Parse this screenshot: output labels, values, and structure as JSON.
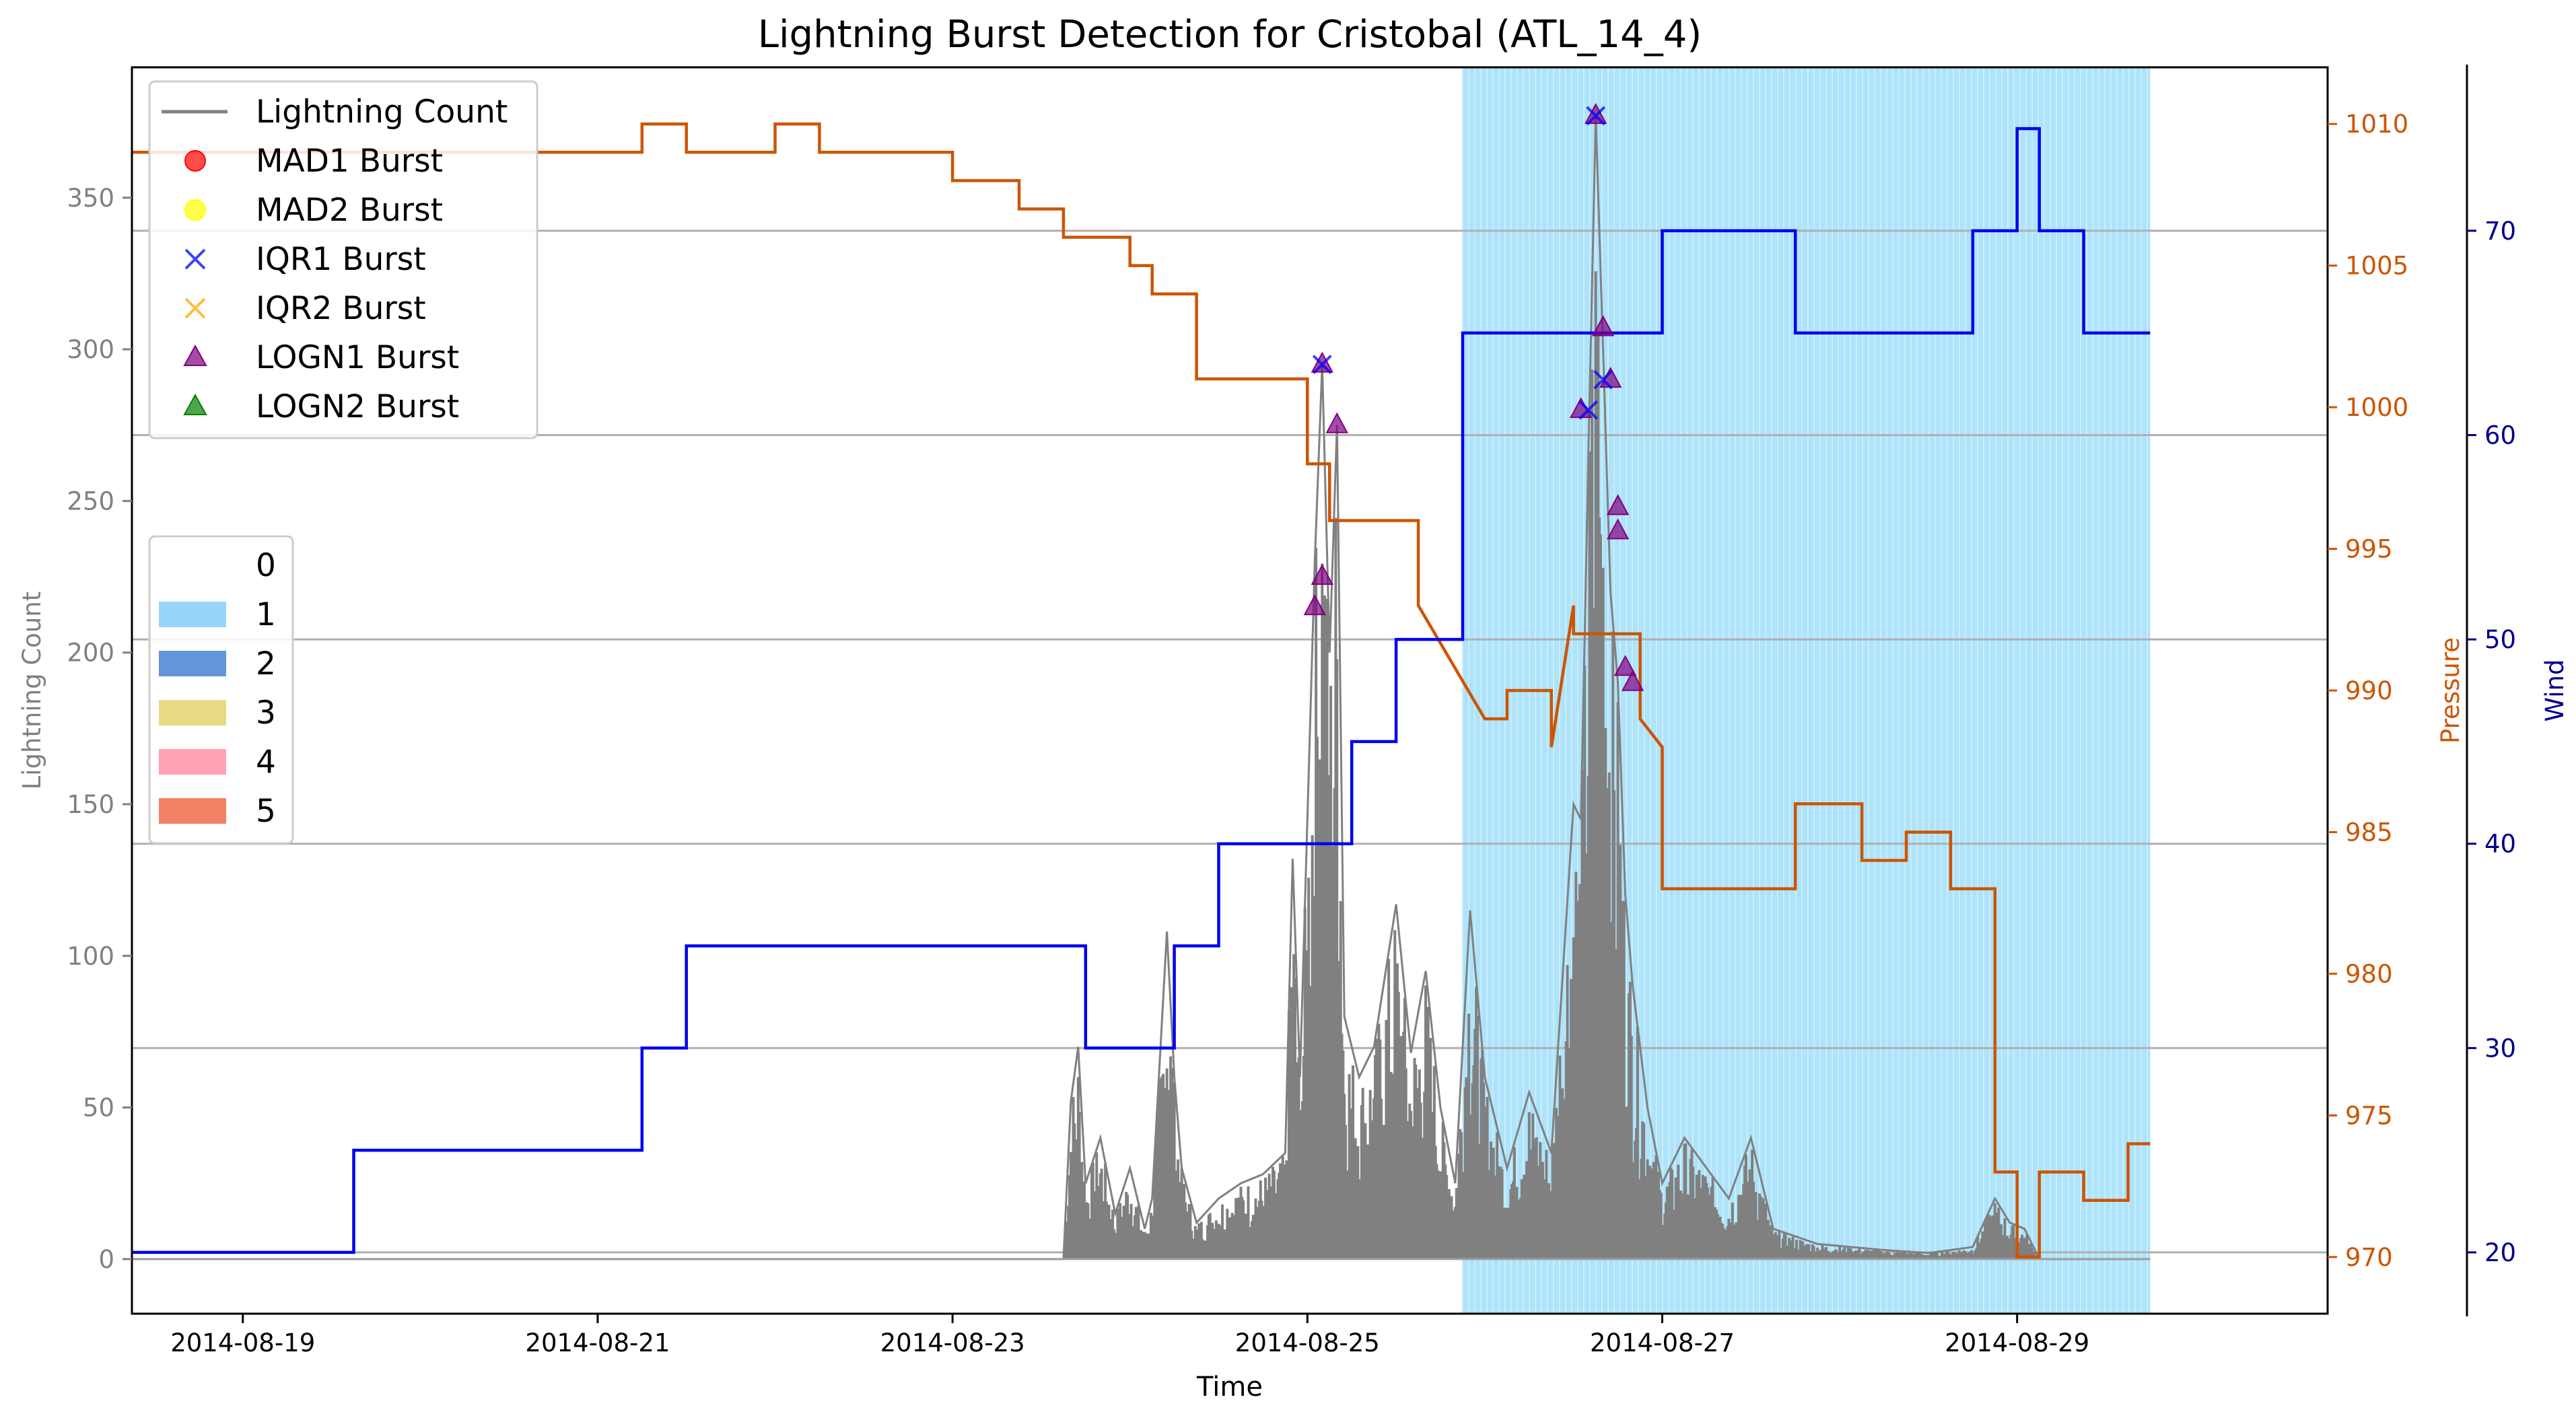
{
  "chart_data": {
    "type": "line",
    "title": "Lightning Burst Detection for Cristobal (ATL_14_4)",
    "xlabel": "Time",
    "ylabel": "Lightning Count",
    "ylabel_right1": "Pressure",
    "ylabel_right2": "Wind",
    "xlim": [
      "2014-08-18 09:00",
      "2014-08-30 18:00"
    ],
    "ylim": [
      -18,
      393
    ],
    "ylim_pressure": [
      968,
      1012
    ],
    "ylim_wind": [
      17,
      78
    ],
    "x_ticks": [
      "2014-08-19",
      "2014-08-21",
      "2014-08-23",
      "2014-08-25",
      "2014-08-27",
      "2014-08-29"
    ],
    "y_ticks": [
      "0",
      "50",
      "100",
      "150",
      "200",
      "250",
      "300",
      "350"
    ],
    "pressure_ticks": [
      "970",
      "975",
      "980",
      "985",
      "990",
      "995",
      "1000",
      "1005",
      "1010"
    ],
    "wind_ticks": [
      "20",
      "30",
      "40",
      "50",
      "60",
      "70"
    ],
    "grid": "horizontal lines at wind-axis ticks",
    "colors": {
      "lightning": "#808080",
      "pressure": "#cc5500",
      "wind": "#0000ee",
      "category_1_band": "#aee3fb",
      "axis_pressure": "#cc5500",
      "axis_wind": "#00008b",
      "axis_left": "#808080"
    },
    "legend_main": {
      "placement": "upper-left",
      "entries": [
        {
          "label": "Lightning Count",
          "marker": "line",
          "color": "#808080"
        },
        {
          "label": "MAD1 Burst",
          "marker": "circle",
          "color": "#ff0000"
        },
        {
          "label": "MAD2 Burst",
          "marker": "circle",
          "color": "#ffff00"
        },
        {
          "label": "IQR1 Burst",
          "marker": "x",
          "color": "#0000ff"
        },
        {
          "label": "IQR2 Burst",
          "marker": "x",
          "color": "#ffa500"
        },
        {
          "label": "LOGN1 Burst",
          "marker": "triangle",
          "color": "#800080"
        },
        {
          "label": "LOGN2 Burst",
          "marker": "triangle",
          "color": "#008000"
        }
      ]
    },
    "legend_category": {
      "placement": "center-left",
      "entries": [
        {
          "label": "0",
          "color": "#ffffff"
        },
        {
          "label": "1",
          "color": "#87cefa"
        },
        {
          "label": "2",
          "color": "#4682d4"
        },
        {
          "label": "3",
          "color": "#e5d36f"
        },
        {
          "label": "4",
          "color": "#ff91a4"
        },
        {
          "label": "5",
          "color": "#ef6c4a"
        }
      ]
    },
    "category_band": {
      "category": 1,
      "start": "2014-08-25 21:00",
      "end": "2014-08-29 18:00"
    },
    "pressure_series": {
      "name": "Pressure",
      "points": [
        [
          "2014-08-18 09:00",
          1009
        ],
        [
          "2014-08-21 06:00",
          1009
        ],
        [
          "2014-08-21 06:00",
          1010
        ],
        [
          "2014-08-21 12:00",
          1010
        ],
        [
          "2014-08-21 12:00",
          1009
        ],
        [
          "2014-08-22 00:00",
          1009
        ],
        [
          "2014-08-22 00:00",
          1010
        ],
        [
          "2014-08-22 06:00",
          1010
        ],
        [
          "2014-08-22 06:00",
          1009
        ],
        [
          "2014-08-23 00:00",
          1009
        ],
        [
          "2014-08-23 00:00",
          1008
        ],
        [
          "2014-08-23 09:00",
          1008
        ],
        [
          "2014-08-23 09:00",
          1007
        ],
        [
          "2014-08-23 15:00",
          1007
        ],
        [
          "2014-08-23 15:00",
          1006
        ],
        [
          "2014-08-24 00:00",
          1006
        ],
        [
          "2014-08-24 00:00",
          1005
        ],
        [
          "2014-08-24 03:00",
          1005
        ],
        [
          "2014-08-24 03:00",
          1004
        ],
        [
          "2014-08-24 09:00",
          1004
        ],
        [
          "2014-08-24 09:00",
          1001
        ],
        [
          "2014-08-25 00:00",
          1001
        ],
        [
          "2014-08-25 00:00",
          998
        ],
        [
          "2014-08-25 03:00",
          998
        ],
        [
          "2014-08-25 03:00",
          996
        ],
        [
          "2014-08-25 15:00",
          996
        ],
        [
          "2014-08-25 15:00",
          993
        ],
        [
          "2014-08-25 15:00",
          993
        ],
        [
          "2014-08-25 15:00",
          993
        ],
        [
          "2014-08-25 15:00",
          993
        ]
      ]
    },
    "pressure_series_tail": [
      [
        "2014-08-25 15:00",
        993
      ],
      [
        "2014-08-26 12:00",
        993
      ],
      [
        "2014-08-26 12:00",
        992
      ],
      [
        "2014-08-26 21:00",
        992
      ],
      [
        "2014-08-26 21:00",
        989
      ],
      [
        "2014-08-26 00:00",
        989
      ],
      [
        "2014-08-26 03:00",
        989
      ],
      [
        "2014-08-26 03:00",
        990
      ],
      [
        "2014-08-26 09:00",
        990
      ],
      [
        "2014-08-26 09:00",
        988
      ],
      [
        "2014-08-27 00:00",
        988
      ],
      [
        "2014-08-27 00:00",
        983
      ],
      [
        "2014-08-27 18:00",
        983
      ],
      [
        "2014-08-27 18:00",
        986
      ],
      [
        "2014-08-28 03:00",
        986
      ],
      [
        "2014-08-28 03:00",
        984
      ],
      [
        "2014-08-28 09:00",
        984
      ],
      [
        "2014-08-28 09:00",
        985
      ],
      [
        "2014-08-28 15:00",
        985
      ],
      [
        "2014-08-28 15:00",
        983
      ],
      [
        "2014-08-28 21:00",
        983
      ],
      [
        "2014-08-28 21:00",
        973
      ],
      [
        "2014-08-29 00:00",
        973
      ],
      [
        "2014-08-29 00:00",
        970
      ],
      [
        "2014-08-29 03:00",
        970
      ],
      [
        "2014-08-29 03:00",
        973
      ],
      [
        "2014-08-29 09:00",
        973
      ],
      [
        "2014-08-29 09:00",
        972
      ],
      [
        "2014-08-29 15:00",
        972
      ],
      [
        "2014-08-29 15:00",
        974
      ],
      [
        "2014-08-29 18:00",
        974
      ]
    ],
    "wind_series": {
      "name": "Wind",
      "points": [
        [
          "2014-08-18 09:00",
          20
        ],
        [
          "2014-08-19 15:00",
          20
        ],
        [
          "2014-08-19 15:00",
          25
        ],
        [
          "2014-08-21 06:00",
          25
        ],
        [
          "2014-08-21 06:00",
          30
        ],
        [
          "2014-08-21 12:00",
          30
        ],
        [
          "2014-08-21 12:00",
          35
        ],
        [
          "2014-08-23 18:00",
          35
        ],
        [
          "2014-08-23 18:00",
          30
        ],
        [
          "2014-08-24 06:00",
          30
        ],
        [
          "2014-08-24 06:00",
          35
        ],
        [
          "2014-08-24 12:00",
          35
        ],
        [
          "2014-08-24 12:00",
          40
        ],
        [
          "2014-08-25 06:00",
          40
        ],
        [
          "2014-08-25 06:00",
          45
        ],
        [
          "2014-08-25 12:00",
          45
        ],
        [
          "2014-08-25 12:00",
          50
        ],
        [
          "2014-08-25 21:00",
          50
        ],
        [
          "2014-08-25 21:00",
          65
        ],
        [
          "2014-08-27 00:00",
          65
        ],
        [
          "2014-08-27 00:00",
          70
        ],
        [
          "2014-08-27 18:00",
          70
        ],
        [
          "2014-08-27 18:00",
          65
        ],
        [
          "2014-08-28 18:00",
          65
        ],
        [
          "2014-08-28 18:00",
          70
        ],
        [
          "2014-08-29 00:00",
          70
        ],
        [
          "2014-08-29 00:00",
          75
        ],
        [
          "2014-08-29 03:00",
          75
        ],
        [
          "2014-08-29 03:00",
          70
        ],
        [
          "2014-08-29 09:00",
          70
        ],
        [
          "2014-08-29 09:00",
          65
        ],
        [
          "2014-08-29 18:00",
          65
        ]
      ]
    },
    "lightning_series": {
      "name": "Lightning Count",
      "points": [
        [
          "2014-08-18 09:00",
          0
        ],
        [
          "2014-08-23 15:00",
          0
        ],
        [
          "2014-08-23 16:00",
          52
        ],
        [
          "2014-08-23 17:00",
          70
        ],
        [
          "2014-08-23 18:00",
          25
        ],
        [
          "2014-08-23 20:00",
          40
        ],
        [
          "2014-08-23 22:00",
          15
        ],
        [
          "2014-08-24 00:00",
          30
        ],
        [
          "2014-08-24 02:00",
          10
        ],
        [
          "2014-08-24 03:00",
          20
        ],
        [
          "2014-08-24 05:00",
          108
        ],
        [
          "2014-08-24 06:00",
          60
        ],
        [
          "2014-08-24 07:00",
          30
        ],
        [
          "2014-08-24 09:00",
          12
        ],
        [
          "2014-08-24 12:00",
          20
        ],
        [
          "2014-08-24 15:00",
          25
        ],
        [
          "2014-08-24 18:00",
          28
        ],
        [
          "2014-08-24 21:00",
          35
        ],
        [
          "2014-08-24 22:00",
          132
        ],
        [
          "2014-08-24 23:00",
          60
        ],
        [
          "2014-08-25 01:00",
          230
        ],
        [
          "2014-08-25 02:00",
          295
        ],
        [
          "2014-08-25 03:00",
          200
        ],
        [
          "2014-08-25 04:00",
          275
        ],
        [
          "2014-08-25 05:00",
          80
        ],
        [
          "2014-08-25 07:00",
          60
        ],
        [
          "2014-08-25 09:00",
          70
        ],
        [
          "2014-08-25 12:00",
          117
        ],
        [
          "2014-08-25 14:00",
          68
        ],
        [
          "2014-08-25 16:00",
          95
        ],
        [
          "2014-08-25 18:00",
          50
        ],
        [
          "2014-08-25 20:00",
          25
        ],
        [
          "2014-08-25 22:00",
          115
        ],
        [
          "2014-08-26 00:00",
          60
        ],
        [
          "2014-08-26 03:00",
          30
        ],
        [
          "2014-08-26 06:00",
          55
        ],
        [
          "2014-08-26 09:00",
          35
        ],
        [
          "2014-08-26 12:00",
          150
        ],
        [
          "2014-08-26 13:00",
          145
        ],
        [
          "2014-08-26 14:00",
          265
        ],
        [
          "2014-08-26 15:00",
          377
        ],
        [
          "2014-08-26 16:00",
          300
        ],
        [
          "2014-08-26 17:00",
          220
        ],
        [
          "2014-08-26 18:00",
          190
        ],
        [
          "2014-08-26 19:00",
          120
        ],
        [
          "2014-08-26 20:00",
          90
        ],
        [
          "2014-08-26 22:00",
          50
        ],
        [
          "2014-08-27 00:00",
          25
        ],
        [
          "2014-08-27 03:00",
          40
        ],
        [
          "2014-08-27 06:00",
          30
        ],
        [
          "2014-08-27 09:00",
          20
        ],
        [
          "2014-08-27 12:00",
          40
        ],
        [
          "2014-08-27 15:00",
          10
        ],
        [
          "2014-08-27 21:00",
          5
        ],
        [
          "2014-08-28 06:00",
          3
        ],
        [
          "2014-08-28 12:00",
          2
        ],
        [
          "2014-08-28 18:00",
          4
        ],
        [
          "2014-08-28 21:00",
          20
        ],
        [
          "2014-08-28 23:00",
          12
        ],
        [
          "2014-08-29 01:00",
          10
        ],
        [
          "2014-08-29 03:00",
          0
        ],
        [
          "2014-08-29 18:00",
          0
        ]
      ]
    },
    "bursts": {
      "IQR1": [
        [
          "2014-08-25 02:00",
          295
        ],
        [
          "2014-08-26 15:00",
          377
        ],
        [
          "2014-08-26 14:00",
          280
        ],
        [
          "2014-08-26 16:00",
          290
        ]
      ],
      "LOGN1": [
        [
          "2014-08-25 01:00",
          215
        ],
        [
          "2014-08-25 02:00",
          225
        ],
        [
          "2014-08-25 02:00",
          295
        ],
        [
          "2014-08-25 04:00",
          275
        ],
        [
          "2014-08-26 13:00",
          280
        ],
        [
          "2014-08-26 15:00",
          377
        ],
        [
          "2014-08-26 16:00",
          307
        ],
        [
          "2014-08-26 17:00",
          290
        ],
        [
          "2014-08-26 18:00",
          240
        ],
        [
          "2014-08-26 18:00",
          248
        ],
        [
          "2014-08-26 19:00",
          195
        ],
        [
          "2014-08-26 20:00",
          190
        ]
      ]
    }
  }
}
